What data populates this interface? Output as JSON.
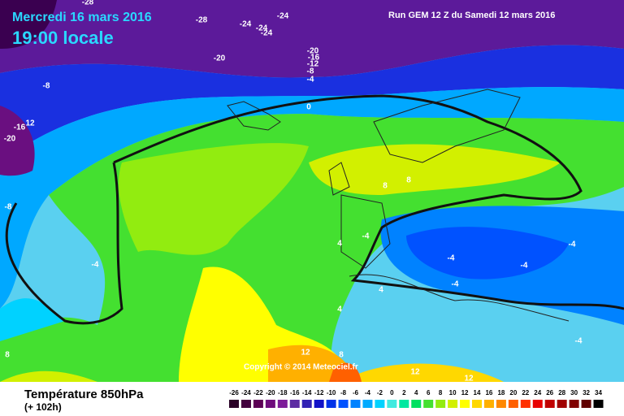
{
  "header": {
    "date": "Mercredi 16 mars 2016",
    "time": "19:00 locale",
    "run": "Run GEM 12 Z du Samedi 12 mars 2016"
  },
  "copyright": "Copyright © 2014 Meteociel.fr",
  "footer": {
    "title": "Température 850hPa",
    "lead": "(+ 102h)"
  },
  "scale": {
    "labels": [
      "-26",
      "-24",
      "-22",
      "-20",
      "-18",
      "-16",
      "-14",
      "-12",
      "-10",
      "-8",
      "-6",
      "-4",
      "-2",
      "0",
      "2",
      "4",
      "6",
      "8",
      "10",
      "12",
      "14",
      "16",
      "18",
      "20",
      "22",
      "24",
      "26",
      "28",
      "30",
      "32",
      "34"
    ],
    "colors": [
      "#2a0026",
      "#43003e",
      "#5c0055",
      "#6e0c7c",
      "#7c1b98",
      "#5c2ba2",
      "#3222b4",
      "#1212c8",
      "#0032e8",
      "#0052ff",
      "#0082ff",
      "#00aaff",
      "#00d2ff",
      "#40eadf",
      "#00e8a0",
      "#00e060",
      "#44e030",
      "#92ec10",
      "#d2f000",
      "#ffff00",
      "#ffd800",
      "#ffb000",
      "#ff8800",
      "#ff6000",
      "#ff3000",
      "#e80000",
      "#c00000",
      "#a00000",
      "#800000",
      "#600000",
      "#000000"
    ]
  },
  "contour_labels": [
    "-28",
    "-28",
    "-24",
    "-24",
    "-24",
    "-24",
    "-20",
    "-20",
    "-16",
    "-12",
    "-8",
    "-4",
    "-8",
    "0",
    "-16",
    "12",
    "-20",
    "-8",
    "8",
    "8",
    "4",
    "-4",
    "-4",
    "-4",
    "-4",
    "-4",
    "-4",
    "4",
    "4",
    "-4",
    "8",
    "12",
    "8",
    "12",
    "12"
  ]
}
